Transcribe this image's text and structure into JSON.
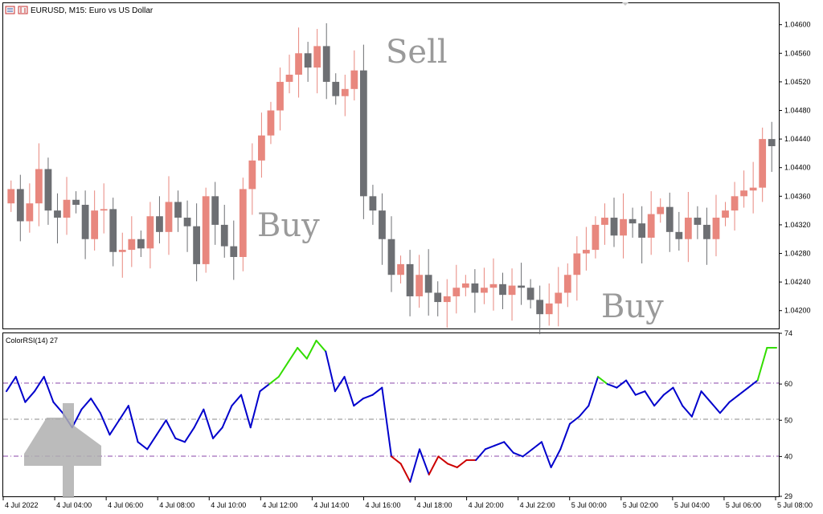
{
  "header": {
    "title": "EURUSD, M15:  Euro vs US Dollar",
    "icons": [
      "chart-window-icon",
      "candlestick-icon"
    ]
  },
  "main_chart": {
    "price_axis_labels": [
      "1.04600",
      "1.04560",
      "1.04520",
      "1.04480",
      "1.04440",
      "1.04400",
      "1.04360",
      "1.04320",
      "1.04280",
      "1.04240",
      "1.04200"
    ],
    "annotations": {
      "sell": "Sell",
      "buy_1": "Buy",
      "buy_2": "Buy"
    }
  },
  "indicator": {
    "title": "ColorRSI(14) 27",
    "axis_labels": [
      "74",
      "60",
      "50",
      "40",
      "29"
    ],
    "levels": [
      60,
      50,
      40
    ]
  },
  "time_axis_labels": [
    "4 Jul 2022",
    "4 Jul 04:00",
    "4 Jul 06:00",
    "4 Jul 08:00",
    "4 Jul 10:00",
    "4 Jul 12:00",
    "4 Jul 14:00",
    "4 Jul 16:00",
    "4 Jul 18:00",
    "4 Jul 20:00",
    "4 Jul 22:00",
    "5 Jul 00:00",
    "5 Jul 02:00",
    "5 Jul 04:00",
    "5 Jul 06:00",
    "5 Jul 08:00"
  ],
  "colors": {
    "bull_candle": "#e8877e",
    "bear_candle": "#6d6f73",
    "rsi_normal": "#0000cc",
    "rsi_overbought": "#33dd00",
    "rsi_oversold": "#cc0000",
    "level_line": "#8844aa",
    "mid_line": "#888888"
  },
  "chart_data": {
    "type": "line",
    "price_closes": [
      1.0437,
      1.04325,
      1.0435,
      1.04398,
      1.0434,
      1.0433,
      1.04355,
      1.04348,
      1.043,
      1.0434,
      1.04342,
      1.04282,
      1.04285,
      1.043,
      1.04287,
      1.04332,
      1.0431,
      1.04352,
      1.0433,
      1.04318,
      1.04265,
      1.0436,
      1.0432,
      1.0429,
      1.04275,
      1.0437,
      1.0441,
      1.04445,
      1.0448,
      1.0452,
      1.0453,
      1.0456,
      1.0454,
      1.0457,
      1.0452,
      1.045,
      1.0451,
      1.04536,
      1.0436,
      1.0434,
      1.043,
      1.0425,
      1.04265,
      1.0422,
      1.0425,
      1.04225,
      1.04212,
      1.0422,
      1.04232,
      1.04238,
      1.04225,
      1.04232,
      1.04237,
      1.04222,
      1.04235,
      1.04232,
      1.04215,
      1.04195,
      1.0421,
      1.04225,
      1.0425,
      1.0428,
      1.04285,
      1.0432,
      1.0433,
      1.04305,
      1.04328,
      1.04322,
      1.04302,
      1.04335,
      1.04345,
      1.0431,
      1.043,
      1.0433,
      1.0432,
      1.043,
      1.0433,
      1.0434,
      1.0436,
      1.04368,
      1.04372,
      1.0444,
      1.0443
    ],
    "rsi_values": [
      58,
      62,
      55,
      58,
      62,
      55,
      52,
      48,
      53,
      56,
      52,
      46,
      50,
      54,
      44,
      42,
      46,
      50,
      45,
      44,
      48,
      53,
      45,
      48,
      54,
      57,
      48,
      58,
      60,
      62,
      66,
      70,
      67,
      72,
      69,
      58,
      62,
      54,
      56,
      57,
      59,
      40,
      38,
      33,
      42,
      35,
      40,
      38,
      37,
      39,
      39,
      42,
      43,
      44,
      41,
      40,
      42,
      44,
      37,
      42,
      49,
      51,
      54,
      62,
      60,
      59,
      61,
      57,
      58,
      54,
      57,
      59,
      54,
      51,
      58,
      55,
      52,
      55,
      57,
      59,
      61,
      70,
      70
    ],
    "ylim_price": [
      1.04175,
      1.0463
    ],
    "ylim_rsi": [
      29,
      74
    ]
  }
}
